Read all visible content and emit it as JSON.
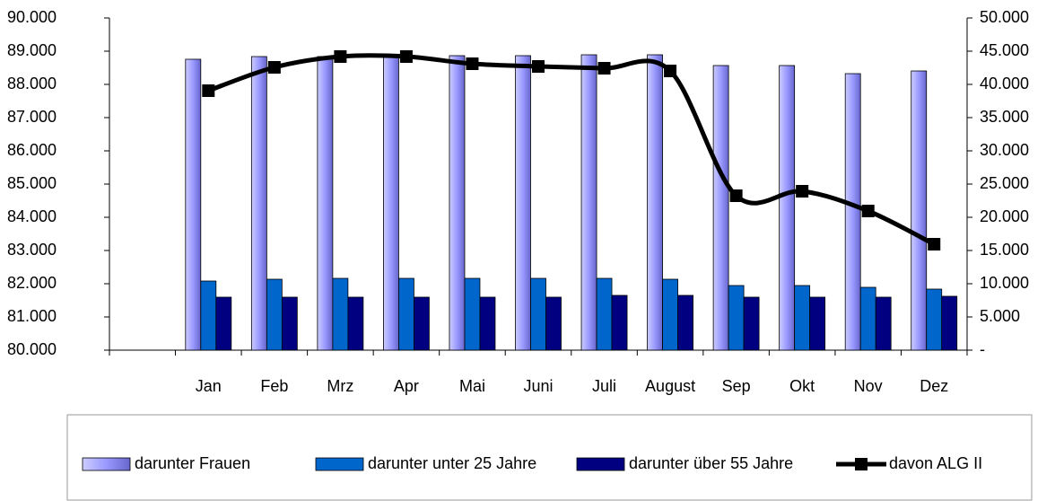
{
  "chart_data": {
    "type": "bar",
    "categories": [
      null,
      "Jan",
      "Feb",
      "Mrz",
      "Apr",
      "Mai",
      "Juni",
      "Juli",
      "August",
      "Sep",
      "Okt",
      "Nov",
      "Dez"
    ],
    "series": [
      {
        "name": "darunter Frauen",
        "color": "#9999ff",
        "values": [
          null,
          88757,
          88838,
          88838,
          88865,
          88865,
          88865,
          88892,
          88892,
          88568,
          88568,
          88324,
          88405
        ]
      },
      {
        "name": "darunter unter 25 Jahre",
        "color": "#0066cc",
        "values": [
          null,
          82081,
          82135,
          82162,
          82162,
          82162,
          82162,
          82162,
          82135,
          81946,
          81946,
          81892,
          81838
        ]
      },
      {
        "name": "darunter über 55 Jahre",
        "color": "#000080",
        "values": [
          null,
          81595,
          81595,
          81595,
          81595,
          81595,
          81595,
          81649,
          81649,
          81595,
          81595,
          81595,
          81622
        ]
      },
      {
        "name": "davon ALG II",
        "color": "#000000",
        "type": "line",
        "axis": "y2",
        "values": [
          null,
          39054,
          42568,
          44189,
          44189,
          43108,
          42703,
          42432,
          42027,
          23243,
          23919,
          20946,
          15946
        ]
      }
    ],
    "ylim": [
      80000,
      90000
    ],
    "yticks": [
      {
        "value": 80000,
        "label": "80.000"
      },
      {
        "value": 81000,
        "label": "81.000"
      },
      {
        "value": 82000,
        "label": "82.000"
      },
      {
        "value": 83000,
        "label": "83.000"
      },
      {
        "value": 84000,
        "label": "84.000"
      },
      {
        "value": 85000,
        "label": "85.000"
      },
      {
        "value": 86000,
        "label": "86.000"
      },
      {
        "value": 87000,
        "label": "87.000"
      },
      {
        "value": 88000,
        "label": "88.000"
      },
      {
        "value": 89000,
        "label": "89.000"
      },
      {
        "value": 90000,
        "label": "90.000"
      }
    ],
    "y2lim": [
      0,
      50000
    ],
    "y2ticks": [
      {
        "value": 0,
        "label": "-"
      },
      {
        "value": 5000,
        "label": "5.000"
      },
      {
        "value": 10000,
        "label": "10.000"
      },
      {
        "value": 15000,
        "label": "15.000"
      },
      {
        "value": 20000,
        "label": "20.000"
      },
      {
        "value": 25000,
        "label": "25.000"
      },
      {
        "value": 30000,
        "label": "30.000"
      },
      {
        "value": 35000,
        "label": "35.000"
      },
      {
        "value": 40000,
        "label": "40.000"
      },
      {
        "value": 45000,
        "label": "45.000"
      },
      {
        "value": 50000,
        "label": "50.000"
      }
    ],
    "grid": false,
    "legend": "bottom"
  }
}
